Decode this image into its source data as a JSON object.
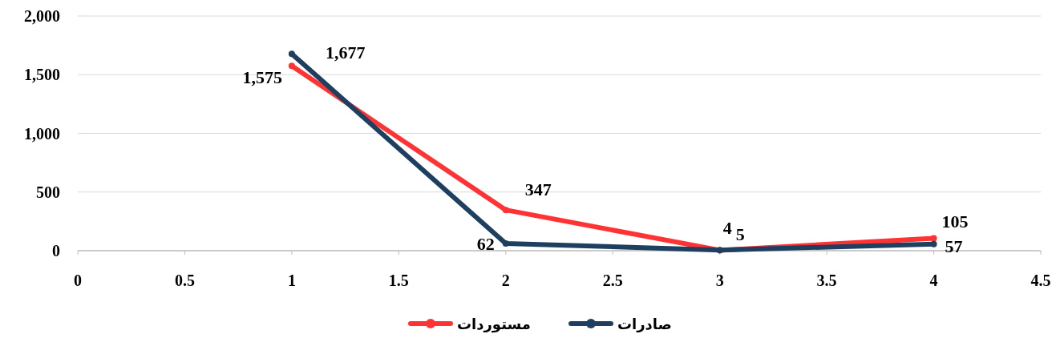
{
  "chart_data": {
    "type": "line",
    "x": [
      1,
      2,
      3,
      4
    ],
    "series": [
      {
        "name": "مستوردات",
        "color": "#ff3333",
        "values": [
          1575,
          347,
          4,
          105
        ],
        "value_labels": [
          "1,575",
          "347",
          "4",
          "105"
        ]
      },
      {
        "name": "صادرات",
        "color": "#1f3f60",
        "values": [
          1677,
          62,
          5,
          57
        ],
        "value_labels": [
          "1,677",
          "62",
          "5",
          "57"
        ]
      }
    ],
    "xlim": [
      0,
      4.5
    ],
    "xticks": [
      0,
      0.5,
      1,
      1.5,
      2,
      2.5,
      3,
      3.5,
      4,
      4.5
    ],
    "ylim": [
      0,
      2000
    ],
    "yticks": [
      0,
      {
        "value": 500,
        "label": "500"
      },
      {
        "value": 1000,
        "label": "1,000"
      },
      {
        "value": 1500,
        "label": "1,500"
      },
      {
        "value": 2000,
        "label": "2,000"
      }
    ],
    "grid": "y",
    "legend": "bottom",
    "marker": "circle",
    "line_style": "solid"
  }
}
